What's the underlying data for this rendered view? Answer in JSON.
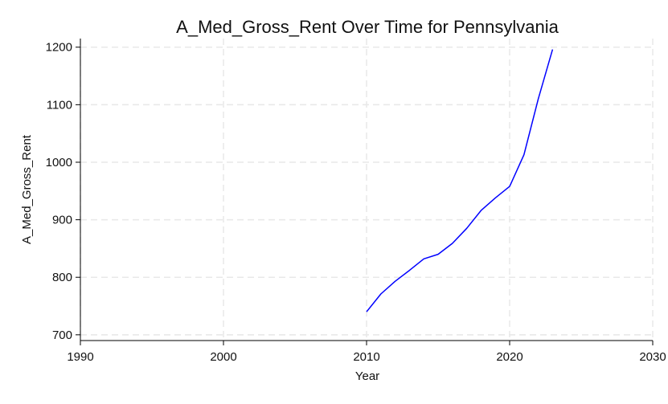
{
  "chart_data": {
    "type": "line",
    "title": "A_Med_Gross_Rent Over Time for Pennsylvania",
    "xlabel": "Year",
    "ylabel": "A_Med_Gross_Rent",
    "xlim": [
      1990,
      2030
    ],
    "ylim": [
      690,
      1215
    ],
    "x_ticks": [
      1990,
      2000,
      2010,
      2020,
      2030
    ],
    "y_ticks": [
      700,
      800,
      900,
      1000,
      1100,
      1200
    ],
    "grid": true,
    "legend": "none",
    "colors": {
      "line": "#0000ff",
      "grid": "#e8e8e8",
      "axis": "#000000"
    },
    "series": [
      {
        "x": [
          2010,
          2011,
          2012,
          2013,
          2014,
          2015,
          2016,
          2017,
          2018,
          2019,
          2020,
          2021,
          2022,
          2023
        ],
        "y": [
          740,
          771,
          793,
          812,
          832,
          840,
          859,
          885,
          916,
          938,
          958,
          1013,
          1110,
          1196
        ]
      }
    ]
  }
}
